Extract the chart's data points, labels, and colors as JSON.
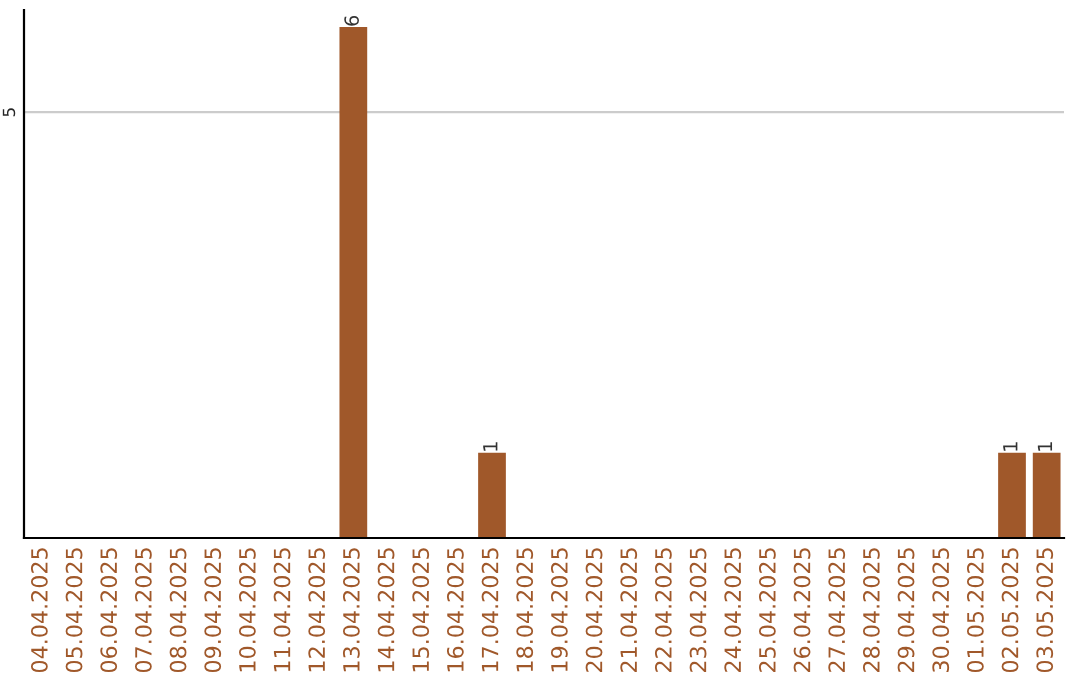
{
  "chart_data": {
    "type": "bar",
    "categories": [
      "04.04.2025",
      "05.04.2025",
      "06.04.2025",
      "07.04.2025",
      "08.04.2025",
      "09.04.2025",
      "10.04.2025",
      "11.04.2025",
      "12.04.2025",
      "13.04.2025",
      "14.04.2025",
      "15.04.2025",
      "16.04.2025",
      "17.04.2025",
      "18.04.2025",
      "19.04.2025",
      "20.04.2025",
      "21.04.2025",
      "22.04.2025",
      "23.04.2025",
      "24.04.2025",
      "25.04.2025",
      "26.04.2025",
      "27.04.2025",
      "28.04.2025",
      "29.04.2025",
      "30.04.2025",
      "01.05.2025",
      "02.05.2025",
      "03.05.2025"
    ],
    "values": [
      0,
      0,
      0,
      0,
      0,
      0,
      0,
      0,
      0,
      6,
      0,
      0,
      0,
      1,
      0,
      0,
      0,
      0,
      0,
      0,
      0,
      0,
      0,
      0,
      0,
      0,
      0,
      0,
      1,
      1
    ],
    "value_labels": [
      null,
      null,
      null,
      null,
      null,
      null,
      null,
      null,
      null,
      "6",
      null,
      null,
      null,
      "1",
      null,
      null,
      null,
      null,
      null,
      null,
      null,
      null,
      null,
      null,
      null,
      null,
      null,
      null,
      "1",
      "1"
    ],
    "color": "#a0582a",
    "ylim": [
      0,
      6.2
    ],
    "yticks": [
      5
    ],
    "grid": "y",
    "legend": false
  }
}
